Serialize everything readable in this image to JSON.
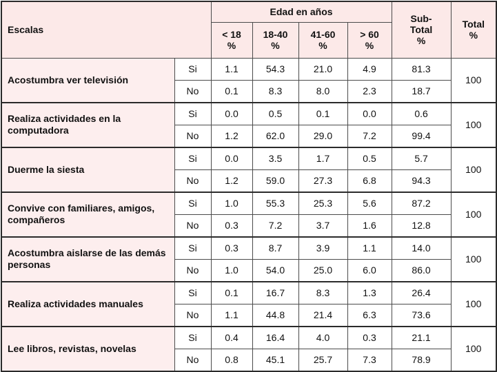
{
  "header": {
    "scales": "Escalas",
    "age_group": "Edad en años",
    "sub_total": "Sub-\nTotal\n%",
    "total": "Total\n%",
    "age_columns": [
      "< 18\n%",
      "18-40\n%",
      "41-60\n%",
      "> 60\n%"
    ]
  },
  "rows": [
    {
      "label": "Acostumbra ver televisión",
      "total": "100",
      "items": [
        {
          "answer": "Si",
          "values": [
            "1.1",
            "54.3",
            "21.0",
            "4.9"
          ],
          "subtotal": "81.3"
        },
        {
          "answer": "No",
          "values": [
            "0.1",
            "8.3",
            "8.0",
            "2.3"
          ],
          "subtotal": "18.7"
        }
      ]
    },
    {
      "label": "Realiza actividades en la computadora",
      "total": "100",
      "items": [
        {
          "answer": "Si",
          "values": [
            "0.0",
            "0.5",
            "0.1",
            "0.0"
          ],
          "subtotal": "0.6"
        },
        {
          "answer": "No",
          "values": [
            "1.2",
            "62.0",
            "29.0",
            "7.2"
          ],
          "subtotal": "99.4"
        }
      ]
    },
    {
      "label": "Duerme la siesta",
      "total": "100",
      "items": [
        {
          "answer": "Si",
          "values": [
            "0.0",
            "3.5",
            "1.7",
            "0.5"
          ],
          "subtotal": "5.7"
        },
        {
          "answer": "No",
          "values": [
            "1.2",
            "59.0",
            "27.3",
            "6.8"
          ],
          "subtotal": "94.3"
        }
      ]
    },
    {
      "label": "Convive con familiares, amigos, compañeros",
      "total": "100",
      "items": [
        {
          "answer": "Si",
          "values": [
            "1.0",
            "55.3",
            "25.3",
            "5.6"
          ],
          "subtotal": "87.2"
        },
        {
          "answer": "No",
          "values": [
            "0.3",
            "7.2",
            "3.7",
            "1.6"
          ],
          "subtotal": "12.8"
        }
      ]
    },
    {
      "label": "Acostumbra aislarse de las demás personas",
      "total": "100",
      "items": [
        {
          "answer": "Si",
          "values": [
            "0.3",
            "8.7",
            "3.9",
            "1.1"
          ],
          "subtotal": "14.0"
        },
        {
          "answer": "No",
          "values": [
            "1.0",
            "54.0",
            "25.0",
            "6.0"
          ],
          "subtotal": "86.0"
        }
      ]
    },
    {
      "label": "Realiza actividades manuales",
      "total": "100",
      "items": [
        {
          "answer": "Si",
          "values": [
            "0.1",
            "16.7",
            "8.3",
            "1.3"
          ],
          "subtotal": "26.4"
        },
        {
          "answer": "No",
          "values": [
            "1.1",
            "44.8",
            "21.4",
            "6.3"
          ],
          "subtotal": "73.6"
        }
      ]
    },
    {
      "label": "Lee libros, revistas, novelas",
      "total": "100",
      "items": [
        {
          "answer": "Si",
          "values": [
            "0.4",
            "16.4",
            "4.0",
            "0.3"
          ],
          "subtotal": "21.1"
        },
        {
          "answer": "No",
          "values": [
            "0.8",
            "45.1",
            "25.7",
            "7.3"
          ],
          "subtotal": "78.9"
        }
      ]
    }
  ]
}
